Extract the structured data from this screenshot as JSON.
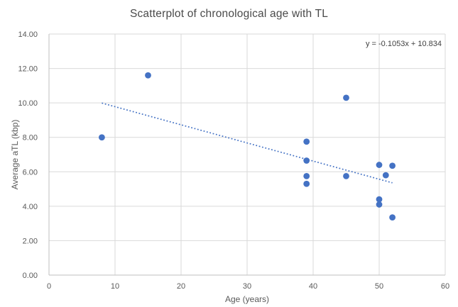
{
  "chart_data": {
    "type": "scatter",
    "title": "Scatterplot of chronological age with TL",
    "xlabel": "Age (years)",
    "ylabel": "Average aTL (kbp)",
    "xlim": [
      0,
      60
    ],
    "ylim": [
      0,
      14
    ],
    "x_ticks": [
      0,
      10,
      20,
      30,
      40,
      50,
      60
    ],
    "x_tick_labels": [
      "0",
      "10",
      "20",
      "30",
      "40",
      "50",
      "60"
    ],
    "y_ticks": [
      0,
      2,
      4,
      6,
      8,
      10,
      12,
      14
    ],
    "y_tick_labels": [
      "0.00",
      "2.00",
      "4.00",
      "6.00",
      "8.00",
      "10.00",
      "12.00",
      "14.00"
    ],
    "grid": true,
    "legend": "none",
    "points": [
      {
        "x": 8,
        "y": 8.0
      },
      {
        "x": 15,
        "y": 11.6
      },
      {
        "x": 39,
        "y": 7.75
      },
      {
        "x": 39,
        "y": 6.65
      },
      {
        "x": 39,
        "y": 5.75
      },
      {
        "x": 39,
        "y": 5.3
      },
      {
        "x": 45,
        "y": 10.3
      },
      {
        "x": 45,
        "y": 5.75
      },
      {
        "x": 50,
        "y": 6.4
      },
      {
        "x": 51,
        "y": 5.8
      },
      {
        "x": 52,
        "y": 6.35
      },
      {
        "x": 50,
        "y": 4.4
      },
      {
        "x": 50,
        "y": 4.1
      },
      {
        "x": 52,
        "y": 3.35
      }
    ],
    "trendline": {
      "label": "y = -0.1053x + 10.834",
      "slope": -0.1053,
      "intercept": 10.834,
      "x_range": [
        8,
        52
      ],
      "style": "dotted"
    },
    "colors": {
      "point": "#4472C4",
      "trendline": "#4472C4",
      "gridline": "#D9D9D9",
      "axis_line": "#BFBFBF",
      "tick_text": "#595959",
      "title_text": "#4a4a4a",
      "equation_text": "#3f3f3f",
      "background": "#FFFFFF"
    }
  }
}
